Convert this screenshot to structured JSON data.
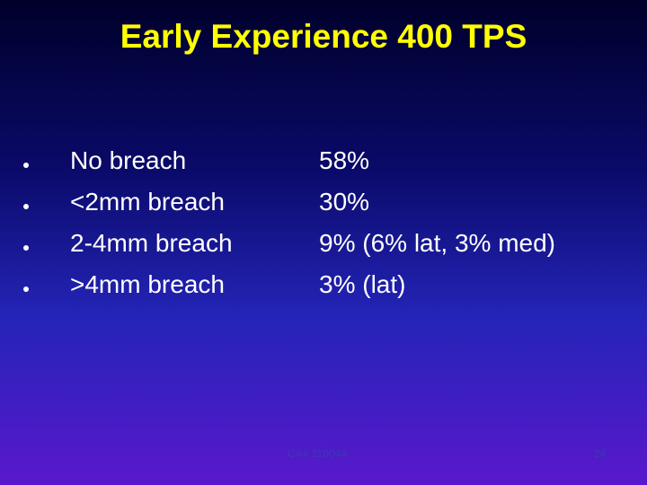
{
  "slide": {
    "title": "Early Experience 400 TPS",
    "items": [
      {
        "label": "No breach",
        "result": "58%"
      },
      {
        "label": "<2mm breach",
        "result": "30%"
      },
      {
        "label": "2-4mm breach",
        "result": "9% (6% lat, 3% med)"
      },
      {
        "label": ">4mm breach",
        "result": "3% (lat)"
      }
    ],
    "footer": "CA# 11004A",
    "page_number": "24"
  }
}
